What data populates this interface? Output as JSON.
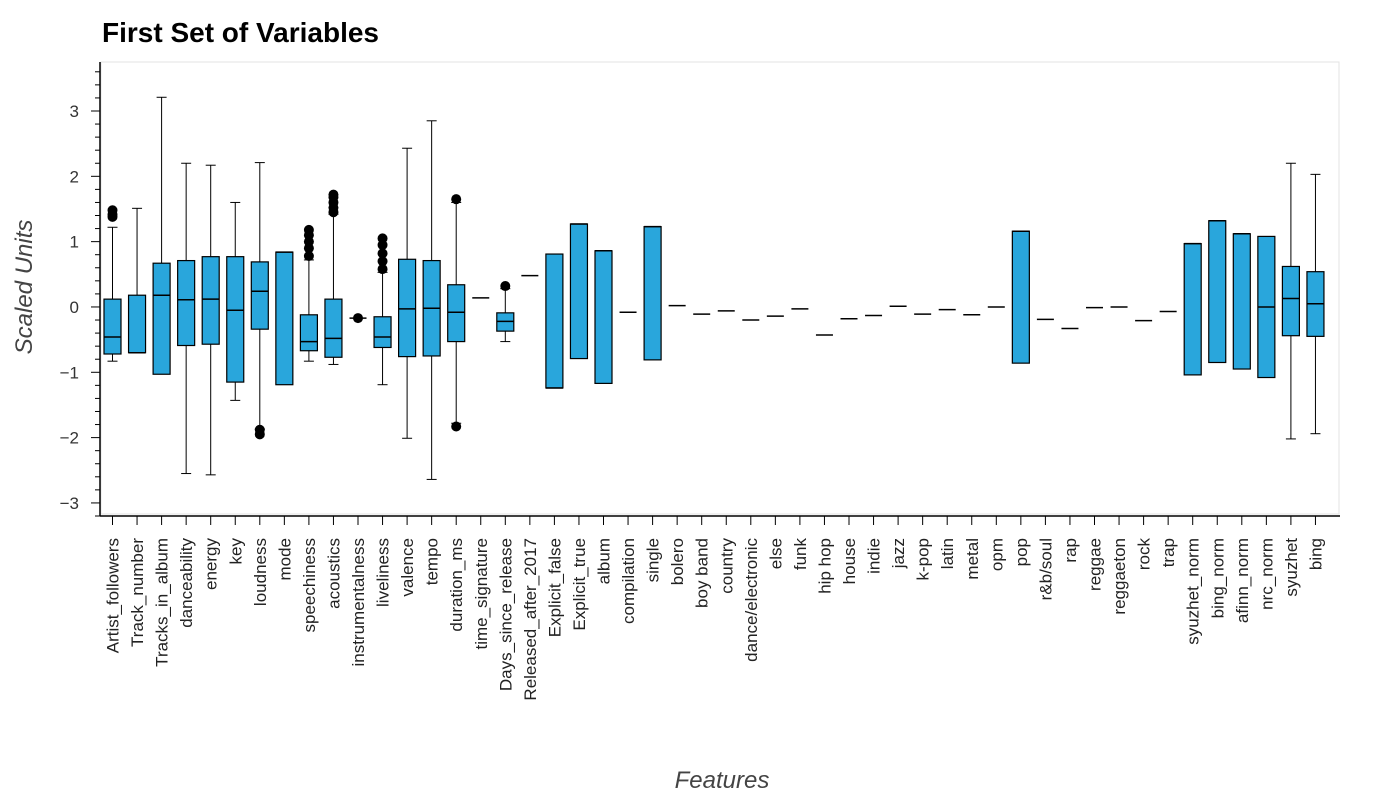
{
  "chart_data": {
    "type": "boxplot",
    "title": "First Set of Variables",
    "xlabel": "Features",
    "ylabel": "Scaled Units",
    "ylim": [
      -3.2,
      3.75
    ],
    "yticks": [
      -3,
      -2,
      -1,
      0,
      1,
      2,
      3
    ],
    "grid": false,
    "box_color": "#29a6dc",
    "outline_color": "#000000",
    "categories": [
      "Artist_followers",
      "Track_number",
      "Tracks_in_album",
      "danceability",
      "energy",
      "key",
      "loudness",
      "mode",
      "speechiness",
      "acoustics",
      "instrumentalness",
      "liveliness",
      "valence",
      "tempo",
      "duration_ms",
      "time_signature",
      "Days_since_release",
      "Released_after_2017",
      "Explicit_false",
      "Explicit_true",
      "album",
      "compilation",
      "single",
      "bolero",
      "boy band",
      "country",
      "dance/electronic",
      "else",
      "funk",
      "hip hop",
      "house",
      "indie",
      "jazz",
      "k-pop",
      "latin",
      "metal",
      "opm",
      "pop",
      "r&b/soul",
      "rap",
      "reggae",
      "reggaeton",
      "rock",
      "trap",
      "syuzhet_norm",
      "bing_norm",
      "afinn_norm",
      "nrc_norm",
      "syuzhet",
      "bing"
    ],
    "boxes": [
      {
        "q1": -0.72,
        "median": -0.46,
        "q3": 0.12,
        "lower": -0.83,
        "upper": 1.22,
        "outliers": [
          1.38,
          1.42,
          1.48
        ]
      },
      {
        "q1": -0.7,
        "median": -0.7,
        "q3": 0.18,
        "lower": -0.7,
        "upper": 1.51,
        "outliers": []
      },
      {
        "q1": -1.03,
        "median": 0.18,
        "q3": 0.67,
        "lower": -1.03,
        "upper": 3.21,
        "outliers": []
      },
      {
        "q1": -0.59,
        "median": 0.11,
        "q3": 0.71,
        "lower": -2.55,
        "upper": 2.2,
        "outliers": []
      },
      {
        "q1": -0.57,
        "median": 0.12,
        "q3": 0.77,
        "lower": -2.57,
        "upper": 2.17,
        "outliers": []
      },
      {
        "q1": -1.15,
        "median": -0.05,
        "q3": 0.77,
        "lower": -1.43,
        "upper": 1.6,
        "outliers": []
      },
      {
        "q1": -0.34,
        "median": 0.24,
        "q3": 0.69,
        "lower": -1.87,
        "upper": 2.21,
        "outliers": [
          -1.95,
          -1.88
        ]
      },
      {
        "q1": -1.19,
        "median": 0.84,
        "q3": 0.84,
        "lower": -1.19,
        "upper": 0.84,
        "outliers": []
      },
      {
        "q1": -0.67,
        "median": -0.53,
        "q3": -0.12,
        "lower": -0.83,
        "upper": 0.72,
        "outliers": [
          0.78,
          0.9,
          1.0,
          1.1,
          1.18
        ]
      },
      {
        "q1": -0.77,
        "median": -0.48,
        "q3": 0.12,
        "lower": -0.88,
        "upper": 1.42,
        "outliers": [
          1.45,
          1.52,
          1.6,
          1.68,
          1.72
        ]
      },
      {
        "q1": -0.17,
        "median": -0.17,
        "q3": -0.17,
        "lower": -0.17,
        "upper": -0.17,
        "outliers": [
          -0.17
        ]
      },
      {
        "q1": -0.62,
        "median": -0.46,
        "q3": -0.15,
        "lower": -1.19,
        "upper": 0.53,
        "outliers": [
          0.58,
          0.7,
          0.82,
          0.95,
          1.05
        ]
      },
      {
        "q1": -0.76,
        "median": -0.03,
        "q3": 0.73,
        "lower": -2.01,
        "upper": 2.43,
        "outliers": []
      },
      {
        "q1": -0.75,
        "median": -0.02,
        "q3": 0.71,
        "lower": -2.64,
        "upper": 2.85,
        "outliers": []
      },
      {
        "q1": -0.53,
        "median": -0.08,
        "q3": 0.34,
        "lower": -1.78,
        "upper": 1.6,
        "outliers": [
          -1.83,
          1.65
        ]
      },
      {
        "q1": 0.14,
        "median": 0.14,
        "q3": 0.14,
        "lower": 0.14,
        "upper": 0.14,
        "outliers": []
      },
      {
        "q1": -0.37,
        "median": -0.22,
        "q3": -0.09,
        "lower": -0.53,
        "upper": 0.28,
        "outliers": [
          0.32
        ]
      },
      {
        "q1": 0.48,
        "median": 0.48,
        "q3": 0.48,
        "lower": 0.48,
        "upper": 0.48,
        "outliers": []
      },
      {
        "q1": -1.24,
        "median": -1.24,
        "q3": 0.81,
        "lower": -1.24,
        "upper": 0.81,
        "outliers": []
      },
      {
        "q1": -0.79,
        "median": 1.27,
        "q3": 1.27,
        "lower": -0.79,
        "upper": 1.27,
        "outliers": []
      },
      {
        "q1": -1.17,
        "median": 0.86,
        "q3": 0.86,
        "lower": -1.17,
        "upper": 0.86,
        "outliers": []
      },
      {
        "q1": -0.08,
        "median": -0.08,
        "q3": -0.08,
        "lower": -0.08,
        "upper": -0.08,
        "outliers": []
      },
      {
        "q1": -0.81,
        "median": 1.23,
        "q3": 1.23,
        "lower": -0.81,
        "upper": 1.23,
        "outliers": []
      },
      {
        "q1": 0.02,
        "median": 0.02,
        "q3": 0.02,
        "lower": 0.02,
        "upper": 0.02,
        "outliers": []
      },
      {
        "q1": -0.11,
        "median": -0.11,
        "q3": -0.11,
        "lower": -0.11,
        "upper": -0.11,
        "outliers": []
      },
      {
        "q1": -0.06,
        "median": -0.06,
        "q3": -0.06,
        "lower": -0.06,
        "upper": -0.06,
        "outliers": []
      },
      {
        "q1": -0.2,
        "median": -0.2,
        "q3": -0.2,
        "lower": -0.2,
        "upper": -0.2,
        "outliers": []
      },
      {
        "q1": -0.14,
        "median": -0.14,
        "q3": -0.14,
        "lower": -0.14,
        "upper": -0.14,
        "outliers": []
      },
      {
        "q1": -0.03,
        "median": -0.03,
        "q3": -0.03,
        "lower": -0.03,
        "upper": -0.03,
        "outliers": []
      },
      {
        "q1": -0.43,
        "median": -0.43,
        "q3": -0.43,
        "lower": -0.43,
        "upper": -0.43,
        "outliers": []
      },
      {
        "q1": -0.18,
        "median": -0.18,
        "q3": -0.18,
        "lower": -0.18,
        "upper": -0.18,
        "outliers": []
      },
      {
        "q1": -0.13,
        "median": -0.13,
        "q3": -0.13,
        "lower": -0.13,
        "upper": -0.13,
        "outliers": []
      },
      {
        "q1": 0.01,
        "median": 0.01,
        "q3": 0.01,
        "lower": 0.01,
        "upper": 0.01,
        "outliers": []
      },
      {
        "q1": -0.11,
        "median": -0.11,
        "q3": -0.11,
        "lower": -0.11,
        "upper": -0.11,
        "outliers": []
      },
      {
        "q1": -0.04,
        "median": -0.04,
        "q3": -0.04,
        "lower": -0.04,
        "upper": -0.04,
        "outliers": []
      },
      {
        "q1": -0.12,
        "median": -0.12,
        "q3": -0.12,
        "lower": -0.12,
        "upper": -0.12,
        "outliers": []
      },
      {
        "q1": 0.0,
        "median": 0.0,
        "q3": 0.0,
        "lower": 0.0,
        "upper": 0.0,
        "outliers": []
      },
      {
        "q1": -0.86,
        "median": 1.16,
        "q3": 1.16,
        "lower": -0.86,
        "upper": 1.16,
        "outliers": []
      },
      {
        "q1": -0.19,
        "median": -0.19,
        "q3": -0.19,
        "lower": -0.19,
        "upper": -0.19,
        "outliers": []
      },
      {
        "q1": -0.33,
        "median": -0.33,
        "q3": -0.33,
        "lower": -0.33,
        "upper": -0.33,
        "outliers": []
      },
      {
        "q1": -0.01,
        "median": -0.01,
        "q3": -0.01,
        "lower": -0.01,
        "upper": -0.01,
        "outliers": []
      },
      {
        "q1": 0.0,
        "median": 0.0,
        "q3": 0.0,
        "lower": 0.0,
        "upper": 0.0,
        "outliers": []
      },
      {
        "q1": -0.21,
        "median": -0.21,
        "q3": -0.21,
        "lower": -0.21,
        "upper": -0.21,
        "outliers": []
      },
      {
        "q1": -0.07,
        "median": -0.07,
        "q3": -0.07,
        "lower": -0.07,
        "upper": -0.07,
        "outliers": []
      },
      {
        "q1": -1.04,
        "median": 0.97,
        "q3": 0.97,
        "lower": -1.04,
        "upper": 0.97,
        "outliers": []
      },
      {
        "q1": -0.85,
        "median": 1.32,
        "q3": 1.32,
        "lower": -0.85,
        "upper": 1.32,
        "outliers": []
      },
      {
        "q1": -0.95,
        "median": 1.12,
        "q3": 1.12,
        "lower": -0.95,
        "upper": 1.12,
        "outliers": []
      },
      {
        "q1": -1.08,
        "median": 0.0,
        "q3": 1.08,
        "lower": -1.08,
        "upper": 1.08,
        "outliers": []
      },
      {
        "q1": -0.44,
        "median": 0.13,
        "q3": 0.62,
        "lower": -2.02,
        "upper": 2.2,
        "outliers": []
      },
      {
        "q1": -0.45,
        "median": 0.05,
        "q3": 0.54,
        "lower": -1.94,
        "upper": 2.03,
        "outliers": []
      }
    ]
  }
}
